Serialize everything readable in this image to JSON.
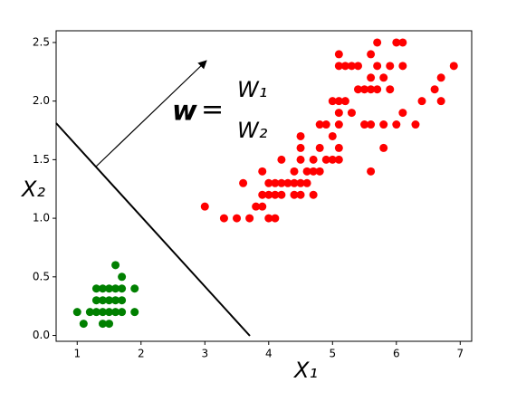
{
  "chart_data": {
    "type": "scatter",
    "x_label": "X₁",
    "y_label": "X₂",
    "xlim": [
      0.67,
      7.18
    ],
    "ylim": [
      -0.05,
      2.6
    ],
    "xticks": [
      1,
      2,
      3,
      4,
      5,
      6,
      7
    ],
    "yticks": [
      {
        "value": 0,
        "label": "0.0"
      },
      0.5,
      {
        "value": 1,
        "label": "1.0"
      },
      1.5,
      {
        "value": 2,
        "label": "2.0"
      },
      2.5
    ],
    "annotations": {
      "vector": "w",
      "equals": "=",
      "components": [
        "W₁",
        "W₂"
      ]
    },
    "series": [
      {
        "color": "#008000",
        "x": [
          1.0,
          1.1,
          1.2,
          1.3,
          1.3,
          1.3,
          1.4,
          1.4,
          1.4,
          1.5,
          1.5,
          1.5,
          1.5,
          1.6,
          1.6,
          1.6,
          1.7,
          1.7,
          1.7,
          1.7,
          1.9,
          1.9,
          1.6,
          1.4
        ],
        "y": [
          0.2,
          0.1,
          0.2,
          0.2,
          0.3,
          0.4,
          0.2,
          0.3,
          0.1,
          0.2,
          0.1,
          0.4,
          0.3,
          0.2,
          0.4,
          0.6,
          0.2,
          0.3,
          0.5,
          0.4,
          0.2,
          0.4,
          0.3,
          0.4
        ]
      },
      {
        "color": "#ff0000",
        "x": [
          3.0,
          3.3,
          3.5,
          3.7,
          3.8,
          3.9,
          3.9,
          3.9,
          4.0,
          4.1,
          4.0,
          4.0,
          4.1,
          4.2,
          4.3,
          4.4,
          4.5,
          4.1,
          4.2,
          4.4,
          4.5,
          4.7,
          4.2,
          4.4,
          4.5,
          4.6,
          4.7,
          4.8,
          4.5,
          4.5,
          4.7,
          4.8,
          4.9,
          4.9,
          5.0,
          5.0,
          5.1,
          5.1,
          5.0,
          5.1,
          5.1,
          5.1,
          5.1,
          5.1,
          5.2,
          5.2,
          5.3,
          5.3,
          5.4,
          5.4,
          5.5,
          5.5,
          5.6,
          5.6,
          5.6,
          5.6,
          5.6,
          5.7,
          5.7,
          5.7,
          5.8,
          5.8,
          5.9,
          5.9,
          6.0,
          6.0,
          6.1,
          6.1,
          6.1,
          6.3,
          6.4,
          6.6,
          6.7,
          6.7,
          6.9,
          4.6,
          3.6,
          4.8,
          5.8
        ],
        "y": [
          1.1,
          1.0,
          1.0,
          1.0,
          1.1,
          1.1,
          1.2,
          1.4,
          1.0,
          1.0,
          1.2,
          1.3,
          1.3,
          1.3,
          1.3,
          1.3,
          1.3,
          1.2,
          1.2,
          1.2,
          1.2,
          1.2,
          1.5,
          1.4,
          1.5,
          1.4,
          1.4,
          1.4,
          1.6,
          1.7,
          1.5,
          1.8,
          1.5,
          1.8,
          1.7,
          1.5,
          1.5,
          1.6,
          2.0,
          1.8,
          1.9,
          2.0,
          2.3,
          2.4,
          2.0,
          2.3,
          1.9,
          2.3,
          2.1,
          2.3,
          1.8,
          2.1,
          1.8,
          1.4,
          2.1,
          2.2,
          2.4,
          2.1,
          2.3,
          2.5,
          1.8,
          2.2,
          2.1,
          2.3,
          1.8,
          2.5,
          1.9,
          2.3,
          2.5,
          1.8,
          2.0,
          2.1,
          2.0,
          2.2,
          2.3,
          1.3,
          1.3,
          1.6,
          1.6
        ]
      }
    ]
  }
}
